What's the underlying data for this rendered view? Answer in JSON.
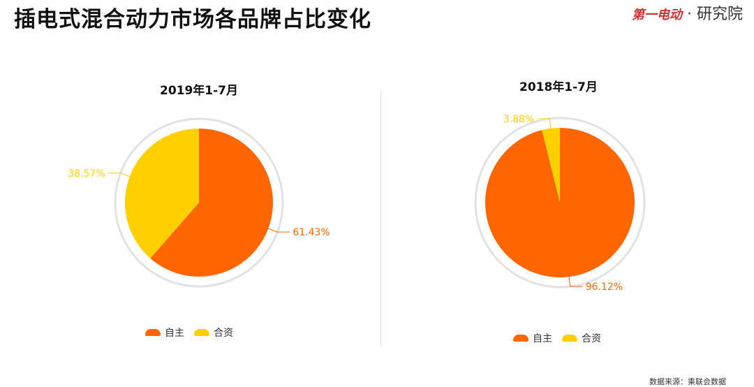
{
  "title": "插电式混合动力市场各品牌占比变化",
  "logo": {
    "brand": "第一电动",
    "suffix": "· 研究院"
  },
  "source": "数据来源：乘联会数据",
  "colors": {
    "自主": "#FF6600",
    "合资": "#FFD000"
  },
  "chart_data": [
    {
      "type": "pie",
      "title": "2019年1-7月",
      "categories": [
        "自主",
        "合资"
      ],
      "values": [
        61.43,
        38.57
      ],
      "labels": [
        "61.43%",
        "38.57%"
      ],
      "legend": [
        "自主",
        "合资"
      ],
      "legend_placement": "bottom"
    },
    {
      "type": "pie",
      "title": "2018年1-7月",
      "categories": [
        "自主",
        "合资"
      ],
      "values": [
        96.12,
        3.88
      ],
      "labels": [
        "96.12%",
        "3.88%"
      ],
      "legend": [
        "自主",
        "合资"
      ],
      "legend_placement": "bottom"
    }
  ]
}
